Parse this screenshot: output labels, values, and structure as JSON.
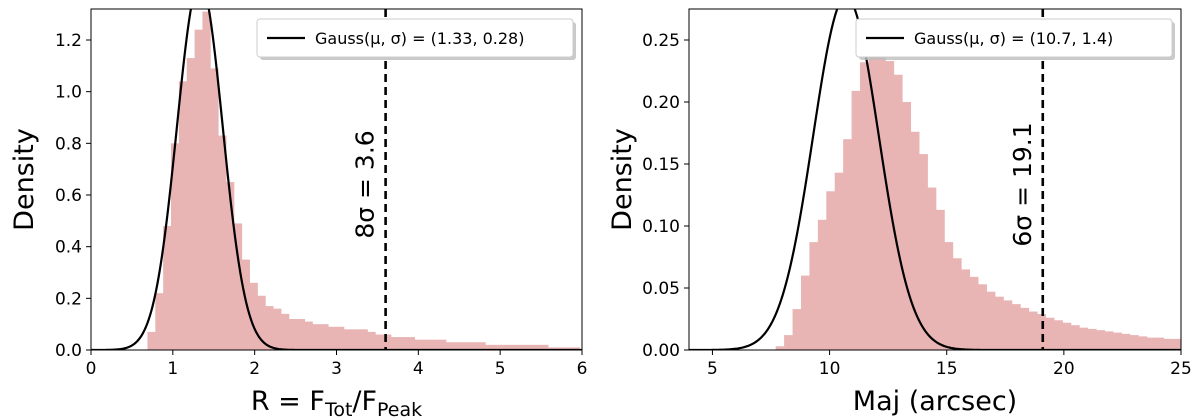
{
  "chart_data": [
    {
      "type": "bar",
      "subtype": "histogram",
      "bar_color": "#e8b4b4",
      "xlim": [
        0,
        6
      ],
      "ylim": [
        0,
        1.32
      ],
      "xticks": [
        0,
        1,
        2,
        3,
        4,
        5,
        6
      ],
      "xtick_labels": [
        "0",
        "1",
        "2",
        "3",
        "4",
        "5",
        "6"
      ],
      "yticks": [
        0.0,
        0.2,
        0.4,
        0.6,
        0.8,
        1.0,
        1.2
      ],
      "ytick_labels": [
        "0.0",
        "0.2",
        "0.4",
        "0.6",
        "0.8",
        "1.0",
        "1.2"
      ],
      "ylabel": "Density",
      "xlabel": {
        "main": "R = F",
        "sub1": "Tot",
        "mid": "/F",
        "sub2": "Peak"
      },
      "bin_width": 0.096,
      "bin_start": 0.69,
      "values": [
        0.07,
        0.22,
        0.48,
        0.8,
        1.04,
        1.13,
        1.24,
        1.31,
        1.09,
        0.83,
        0.65,
        0.49,
        0.35,
        0.26,
        0.21,
        0.17,
        0.16,
        0.14,
        0.12,
        0.12,
        0.11,
        0.1,
        0.1,
        0.09,
        0.09,
        0.08,
        0.08,
        0.08,
        0.07,
        0.06,
        0.06,
        0.05,
        0.05,
        0.05,
        0.04,
        0.04,
        0.04,
        0.04,
        0.03,
        0.03,
        0.03,
        0.03,
        0.03,
        0.02,
        0.02,
        0.02,
        0.02,
        0.02,
        0.02,
        0.02,
        0.02,
        0.01,
        0.01,
        0.01,
        0.01
      ],
      "gauss": {
        "mu": 1.33,
        "sigma": 0.28
      },
      "legend": {
        "label": "Gauss(μ, σ) = (1.33, 0.28)",
        "position": "top-right"
      },
      "vline": {
        "x": 3.6,
        "label": "8σ = 3.6"
      }
    },
    {
      "type": "bar",
      "subtype": "histogram",
      "bar_color": "#e8b4b4",
      "xlim": [
        4,
        25
      ],
      "ylim": [
        0,
        0.275
      ],
      "xticks": [
        5,
        10,
        15,
        20,
        25
      ],
      "xtick_labels": [
        "5",
        "10",
        "15",
        "20",
        "25"
      ],
      "yticks": [
        0.0,
        0.05,
        0.1,
        0.15,
        0.2,
        0.25
      ],
      "ytick_labels": [
        "0.00",
        "0.05",
        "0.10",
        "0.15",
        "0.20",
        "0.25"
      ],
      "ylabel": "Density",
      "xlabel": {
        "main": "Maj (arcsec)"
      },
      "bin_width": 0.36,
      "bin_start": 7.7,
      "values": [
        0.003,
        0.012,
        0.033,
        0.06,
        0.087,
        0.105,
        0.128,
        0.143,
        0.17,
        0.209,
        0.232,
        0.259,
        0.25,
        0.233,
        0.222,
        0.2,
        0.176,
        0.158,
        0.131,
        0.113,
        0.087,
        0.074,
        0.065,
        0.059,
        0.053,
        0.047,
        0.043,
        0.04,
        0.037,
        0.034,
        0.031,
        0.029,
        0.026,
        0.024,
        0.022,
        0.02,
        0.018,
        0.017,
        0.016,
        0.015,
        0.014,
        0.013,
        0.012,
        0.011,
        0.01,
        0.01,
        0.009,
        0.009,
        0.008,
        0.008
      ],
      "gauss": {
        "mu": 10.7,
        "sigma": 1.4
      },
      "legend": {
        "label": "Gauss(μ, σ) = (10.7, 1.4)",
        "position": "top-right"
      },
      "vline": {
        "x": 19.1,
        "label": "6σ = 19.1"
      }
    }
  ]
}
